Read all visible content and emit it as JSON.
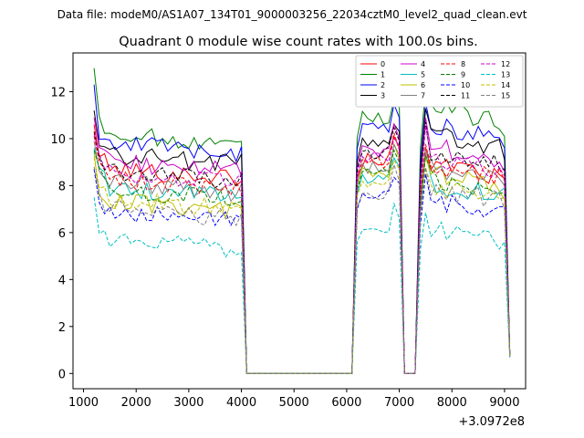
{
  "chart_data": {
    "type": "line",
    "suptitle": "Data file: modeM0/AS1A07_134T01_9000003256_22034cztM0_level2_quad_clean.evt",
    "title": "Quadrant 0 module wise count rates with 100.0s bins.",
    "xlabel": "",
    "ylabel": "",
    "x_offset_label": "+3.0972e8",
    "xlim": [
      800,
      9400
    ],
    "ylim": [
      -0.65,
      13.65
    ],
    "x_ticks": [
      1000,
      2000,
      3000,
      4000,
      5000,
      6000,
      7000,
      8000,
      9000
    ],
    "y_ticks": [
      0,
      2,
      4,
      6,
      8,
      10,
      12
    ],
    "x": [
      1200,
      1300,
      1400,
      1500,
      1600,
      1700,
      1800,
      1900,
      2000,
      2100,
      2200,
      2300,
      2400,
      2500,
      2600,
      2700,
      2800,
      2900,
      3000,
      3100,
      3200,
      3300,
      3400,
      3500,
      3600,
      3700,
      3800,
      3900,
      4000,
      4100,
      4200,
      4300,
      4400,
      4500,
      4600,
      4700,
      4800,
      4900,
      5000,
      5100,
      5200,
      5300,
      5400,
      5500,
      5600,
      5700,
      5800,
      5900,
      6000,
      6100,
      6200,
      6300,
      6400,
      6500,
      6600,
      6700,
      6800,
      6900,
      7000,
      7100,
      7200,
      7300,
      7400,
      7500,
      7600,
      7700,
      7800,
      7900,
      8000,
      8100,
      8200,
      8300,
      8400,
      8500,
      8600,
      8700,
      8800,
      8900,
      9000,
      9100
    ],
    "legend": {
      "location": "upper right",
      "columns": 4
    },
    "series": [
      {
        "name": "0",
        "color": "#ff0000",
        "dash": "solid",
        "plateau_a": 8.7,
        "plateau_b": 9.1,
        "plateau_c": 8.9,
        "plateau_d": 8.3,
        "start": 10.6,
        "end": 0.75
      },
      {
        "name": "1",
        "color": "#008000",
        "dash": "solid",
        "plateau_a": 10.2,
        "plateau_b": 10.9,
        "plateau_c": 11.3,
        "plateau_d": 10.1,
        "start": 13.0,
        "end": 0.8
      },
      {
        "name": "2",
        "color": "#0000ff",
        "dash": "solid",
        "plateau_a": 9.8,
        "plateau_b": 10.4,
        "plateau_c": 10.6,
        "plateau_d": 9.6,
        "start": 12.3,
        "end": 0.8
      },
      {
        "name": "3",
        "color": "#000000",
        "dash": "solid",
        "plateau_a": 9.3,
        "plateau_b": 9.8,
        "plateau_c": 10.2,
        "plateau_d": 9.1,
        "start": 11.2,
        "end": 0.8
      },
      {
        "name": "4",
        "color": "#cc00cc",
        "dash": "solid",
        "plateau_a": 9.0,
        "plateau_b": 9.5,
        "plateau_c": 9.7,
        "plateau_d": 8.6,
        "start": 10.9,
        "end": 0.8
      },
      {
        "name": "5",
        "color": "#00bfbf",
        "dash": "solid",
        "plateau_a": 7.9,
        "plateau_b": 8.3,
        "plateau_c": 8.1,
        "plateau_d": 7.9,
        "start": 9.6,
        "end": 0.75
      },
      {
        "name": "6",
        "color": "#bfbf00",
        "dash": "solid",
        "plateau_a": 7.3,
        "plateau_b": 8.6,
        "plateau_c": 8.6,
        "plateau_d": 7.4,
        "start": 9.4,
        "end": 0.75
      },
      {
        "name": "7",
        "color": "#808080",
        "dash": "solid",
        "plateau_a": 8.1,
        "plateau_b": 8.8,
        "plateau_c": 8.8,
        "plateau_d": 8.0,
        "start": 9.9,
        "end": 0.75
      },
      {
        "name": "8",
        "color": "#ff0000",
        "dash": "dashed",
        "plateau_a": 8.3,
        "plateau_b": 9.0,
        "plateau_c": 8.9,
        "plateau_d": 8.2,
        "start": 10.1,
        "end": 0.8
      },
      {
        "name": "9",
        "color": "#008000",
        "dash": "dashed",
        "plateau_a": 7.8,
        "plateau_b": 8.5,
        "plateau_c": 8.3,
        "plateau_d": 7.7,
        "start": 9.5,
        "end": 0.75
      },
      {
        "name": "10",
        "color": "#0000ff",
        "dash": "dashed",
        "plateau_a": 6.9,
        "plateau_b": 7.6,
        "plateau_c": 7.4,
        "plateau_d": 7.1,
        "start": 8.7,
        "end": 0.7
      },
      {
        "name": "11",
        "color": "#000000",
        "dash": "dashed",
        "plateau_a": 8.6,
        "plateau_b": 9.4,
        "plateau_c": 9.5,
        "plateau_d": 8.7,
        "start": 10.3,
        "end": 0.8
      },
      {
        "name": "12",
        "color": "#cc00cc",
        "dash": "dashed",
        "plateau_a": 8.5,
        "plateau_b": 9.2,
        "plateau_c": 9.2,
        "plateau_d": 8.4,
        "start": 10.2,
        "end": 0.8
      },
      {
        "name": "13",
        "color": "#00bfbf",
        "dash": "dashed",
        "plateau_a": 5.7,
        "plateau_b": 6.1,
        "plateau_c": 6.2,
        "plateau_d": 5.6,
        "start": 7.5,
        "end": 0.65
      },
      {
        "name": "14",
        "color": "#bfbf00",
        "dash": "dashed",
        "plateau_a": 7.4,
        "plateau_b": 8.2,
        "plateau_c": 8.0,
        "plateau_d": 7.5,
        "start": 9.2,
        "end": 0.75
      },
      {
        "name": "15",
        "color": "#808080",
        "dash": "dashed",
        "plateau_a": 7.0,
        "plateau_b": 7.7,
        "plateau_c": 7.9,
        "plateau_d": 7.0,
        "start": 8.8,
        "end": 0.7
      }
    ]
  }
}
